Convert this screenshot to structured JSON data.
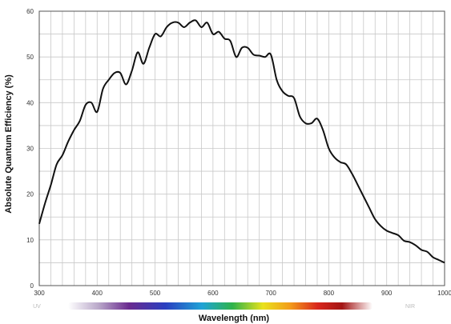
{
  "chart_data": {
    "type": "line",
    "title": "",
    "xlabel": "Wavelength (nm)",
    "ylabel": "Absolute Quantum Efficiency (%)",
    "xlim": [
      300,
      1000
    ],
    "ylim": [
      0,
      60
    ],
    "x_ticks": [
      300,
      400,
      500,
      600,
      700,
      800,
      900,
      1000
    ],
    "y_ticks": [
      0,
      10,
      20,
      30,
      40,
      50,
      60
    ],
    "grid": true,
    "spectrum_bar": {
      "left_label": "UV",
      "right_label": "NIR"
    },
    "series": [
      {
        "color": "#111111",
        "x": [
          300,
          310,
          320,
          330,
          340,
          350,
          360,
          370,
          380,
          390,
          400,
          410,
          420,
          430,
          440,
          450,
          460,
          470,
          480,
          490,
          500,
          510,
          520,
          530,
          540,
          550,
          560,
          570,
          580,
          590,
          600,
          610,
          620,
          630,
          640,
          650,
          660,
          670,
          680,
          690,
          700,
          710,
          720,
          730,
          740,
          750,
          760,
          770,
          780,
          790,
          800,
          810,
          820,
          830,
          840,
          850,
          860,
          870,
          880,
          890,
          900,
          910,
          920,
          930,
          940,
          950,
          960,
          970,
          980,
          990,
          1000
        ],
        "y": [
          13.5,
          18,
          22,
          26.5,
          28.5,
          31.5,
          34,
          36,
          39.5,
          40,
          38,
          43,
          45,
          46.5,
          46.5,
          44,
          47,
          51,
          48.5,
          52,
          55,
          54.5,
          56.5,
          57.5,
          57.5,
          56.5,
          57.5,
          58,
          56.5,
          57.5,
          55,
          55.5,
          54,
          53.5,
          50,
          52,
          52,
          50.5,
          50.3,
          50,
          50.5,
          45,
          42.5,
          41.5,
          41,
          37,
          35.5,
          35.5,
          36.5,
          34,
          30,
          28,
          27,
          26.5,
          24.5,
          22,
          19.5,
          17,
          14.5,
          13,
          12,
          11.5,
          11,
          9.8,
          9.5,
          8.8,
          7.8,
          7.4,
          6.2,
          5.6,
          5
        ]
      }
    ]
  }
}
